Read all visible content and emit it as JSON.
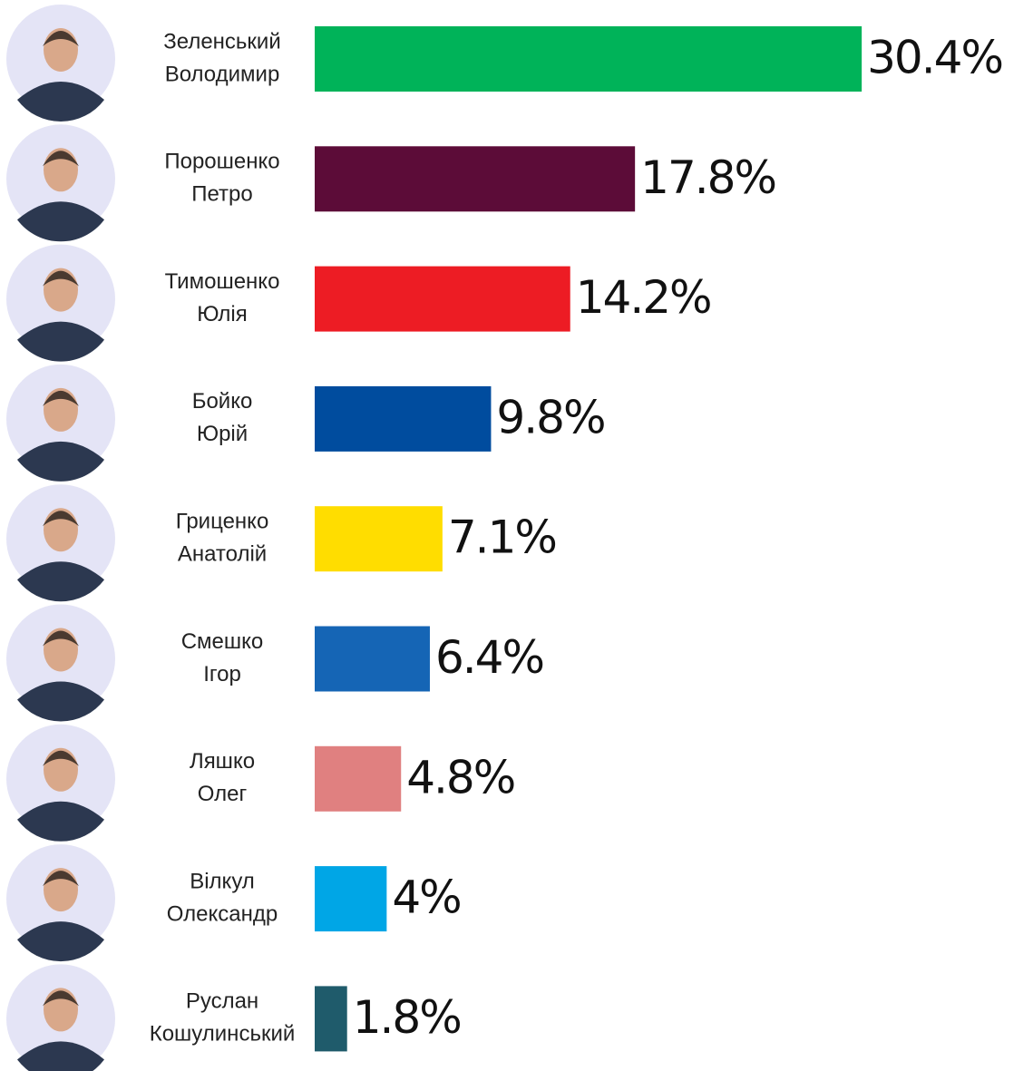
{
  "chart_data": {
    "type": "bar",
    "categories": [
      [
        "Зеленський",
        "Володимир"
      ],
      [
        "Порошенко",
        "Петро"
      ],
      [
        "Тимошенко",
        "Юлія"
      ],
      [
        "Бойко",
        "Юрій"
      ],
      [
        "Гриценко",
        "Анатолій"
      ],
      [
        "Смешко",
        "Ігор"
      ],
      [
        "Ляшко",
        "Олег"
      ],
      [
        "Вілкул",
        "Олександр"
      ],
      [
        "Руслан",
        "Кошулинський"
      ]
    ],
    "values": [
      30.4,
      17.8,
      14.2,
      9.8,
      7.1,
      6.4,
      4.8,
      4,
      1.8
    ],
    "value_labels": [
      "30.4%",
      "17.8%",
      "14.2%",
      "9.8%",
      "7.1%",
      "6.4%",
      "4.8%",
      "4%",
      "1.8%"
    ],
    "colors": [
      "#00b359",
      "#5c0c38",
      "#ed1c24",
      "#004c9e",
      "#ffdd00",
      "#1565b5",
      "#e08080",
      "#00a6e6",
      "#1f5b6b"
    ]
  }
}
